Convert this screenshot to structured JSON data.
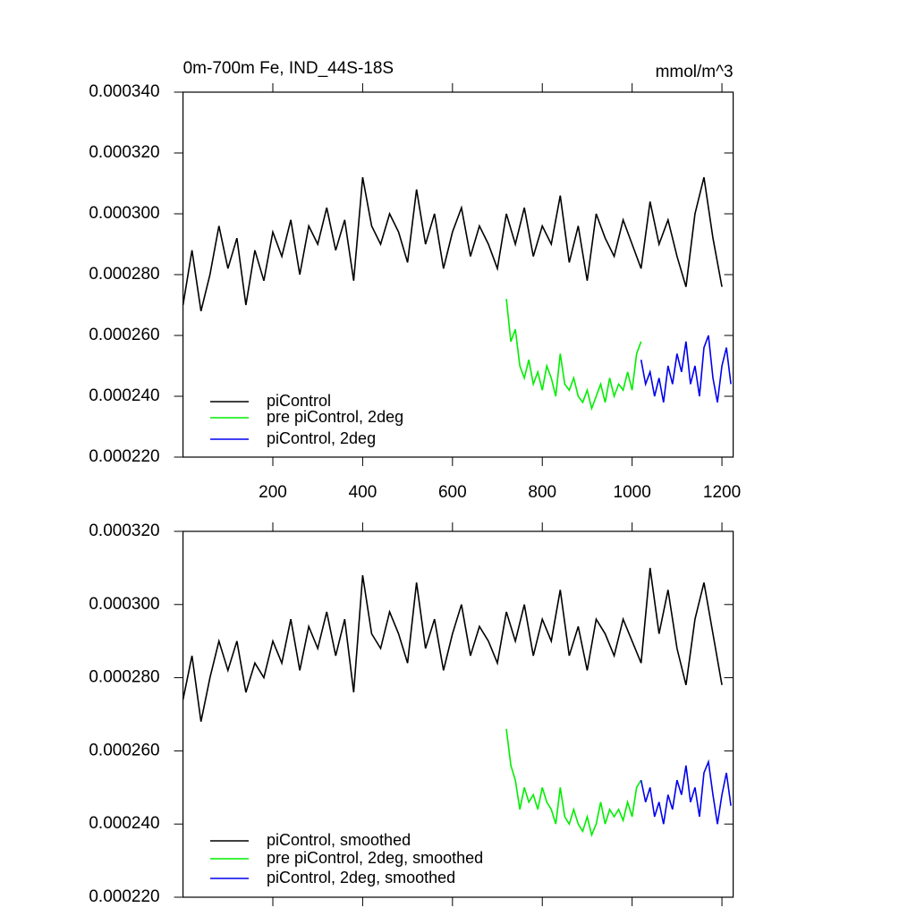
{
  "chart_data": [
    {
      "type": "line",
      "title": "0m-700m Fe, IND_44S-18S",
      "units": "mmol/m^3",
      "xlim": [
        0,
        1225
      ],
      "xticks": [
        200,
        400,
        600,
        800,
        1000,
        1200
      ],
      "ylim": [
        0.00022,
        0.00034
      ],
      "yticks": [
        {
          "value": 0.00022,
          "label": "0.000220"
        },
        {
          "value": 0.00024,
          "label": "0.000240"
        },
        {
          "value": 0.00026,
          "label": "0.000260"
        },
        {
          "value": 0.00028,
          "label": "0.000280"
        },
        {
          "value": 0.0003,
          "label": "0.000300"
        },
        {
          "value": 0.00032,
          "label": "0.000320"
        },
        {
          "value": 0.00034,
          "label": "0.000340"
        }
      ],
      "legend": "lower left",
      "series": [
        {
          "name": "piControl",
          "color": "#000000",
          "x": [
            0,
            20,
            40,
            60,
            80,
            100,
            120,
            140,
            160,
            180,
            200,
            220,
            240,
            260,
            280,
            300,
            320,
            340,
            360,
            380,
            400,
            420,
            440,
            460,
            480,
            500,
            520,
            540,
            560,
            580,
            600,
            620,
            640,
            660,
            680,
            700,
            720,
            740,
            760,
            780,
            800,
            820,
            840,
            860,
            880,
            900,
            920,
            940,
            960,
            980,
            1000,
            1020,
            1040,
            1060,
            1080,
            1100,
            1120,
            1140,
            1160,
            1180,
            1200
          ],
          "values": [
            0.00027,
            0.000288,
            0.000268,
            0.00028,
            0.000296,
            0.000282,
            0.000292,
            0.00027,
            0.000288,
            0.000278,
            0.000294,
            0.000286,
            0.000298,
            0.00028,
            0.000296,
            0.00029,
            0.000302,
            0.000288,
            0.000298,
            0.000278,
            0.000312,
            0.000296,
            0.00029,
            0.0003,
            0.000294,
            0.000284,
            0.000308,
            0.00029,
            0.0003,
            0.000282,
            0.000294,
            0.000302,
            0.000286,
            0.000296,
            0.00029,
            0.000282,
            0.0003,
            0.00029,
            0.000302,
            0.000286,
            0.000296,
            0.00029,
            0.000306,
            0.000284,
            0.000296,
            0.000278,
            0.0003,
            0.000292,
            0.000286,
            0.000298,
            0.00029,
            0.000282,
            0.000304,
            0.00029,
            0.000298,
            0.000286,
            0.000276,
            0.0003,
            0.000312,
            0.000292,
            0.000276
          ]
        },
        {
          "name": "pre piControl, 2deg",
          "color": "#00ee00",
          "x": [
            720,
            730,
            740,
            750,
            760,
            770,
            780,
            790,
            800,
            810,
            820,
            830,
            840,
            850,
            860,
            870,
            880,
            890,
            900,
            910,
            920,
            930,
            940,
            950,
            960,
            970,
            980,
            990,
            1000,
            1010,
            1020
          ],
          "values": [
            0.000272,
            0.000258,
            0.000262,
            0.00025,
            0.000246,
            0.000252,
            0.000244,
            0.000248,
            0.000242,
            0.00025,
            0.000246,
            0.00024,
            0.000254,
            0.000244,
            0.000242,
            0.000246,
            0.00024,
            0.000238,
            0.000242,
            0.000236,
            0.00024,
            0.000244,
            0.000238,
            0.000246,
            0.00024,
            0.000244,
            0.000242,
            0.000248,
            0.000242,
            0.000254,
            0.000258
          ]
        },
        {
          "name": "piControl, 2deg",
          "color": "#0000ee",
          "x": [
            1020,
            1030,
            1040,
            1050,
            1060,
            1070,
            1080,
            1090,
            1100,
            1110,
            1120,
            1130,
            1140,
            1150,
            1160,
            1170,
            1180,
            1190,
            1200,
            1210,
            1220
          ],
          "values": [
            0.000252,
            0.000244,
            0.000248,
            0.00024,
            0.000246,
            0.000238,
            0.00025,
            0.000244,
            0.000254,
            0.000248,
            0.000258,
            0.000244,
            0.00025,
            0.00024,
            0.000256,
            0.00026,
            0.000246,
            0.000238,
            0.00025,
            0.000256,
            0.000244
          ]
        }
      ]
    },
    {
      "type": "line",
      "xlim": [
        0,
        1225
      ],
      "xticks": [
        200,
        400,
        600,
        800,
        1000,
        1200
      ],
      "ylim": [
        0.00022,
        0.00032
      ],
      "yticks": [
        {
          "value": 0.00022,
          "label": "0.000220"
        },
        {
          "value": 0.00024,
          "label": "0.000240"
        },
        {
          "value": 0.00026,
          "label": "0.000260"
        },
        {
          "value": 0.00028,
          "label": "0.000280"
        },
        {
          "value": 0.0003,
          "label": "0.000300"
        },
        {
          "value": 0.00032,
          "label": "0.000320"
        }
      ],
      "legend": "lower left",
      "series": [
        {
          "name": "piControl, smoothed",
          "color": "#000000",
          "x": [
            0,
            20,
            40,
            60,
            80,
            100,
            120,
            140,
            160,
            180,
            200,
            220,
            240,
            260,
            280,
            300,
            320,
            340,
            360,
            380,
            400,
            420,
            440,
            460,
            480,
            500,
            520,
            540,
            560,
            580,
            600,
            620,
            640,
            660,
            680,
            700,
            720,
            740,
            760,
            780,
            800,
            820,
            840,
            860,
            880,
            900,
            920,
            940,
            960,
            980,
            1000,
            1020,
            1040,
            1060,
            1080,
            1100,
            1120,
            1140,
            1160,
            1180,
            1200
          ],
          "values": [
            0.000274,
            0.000286,
            0.000268,
            0.00028,
            0.00029,
            0.000282,
            0.00029,
            0.000276,
            0.000284,
            0.00028,
            0.00029,
            0.000284,
            0.000296,
            0.000282,
            0.000294,
            0.000288,
            0.000298,
            0.000286,
            0.000296,
            0.000276,
            0.000308,
            0.000292,
            0.000288,
            0.000298,
            0.000292,
            0.000284,
            0.000306,
            0.000288,
            0.000296,
            0.000282,
            0.000292,
            0.0003,
            0.000286,
            0.000294,
            0.00029,
            0.000284,
            0.000298,
            0.00029,
            0.0003,
            0.000286,
            0.000296,
            0.00029,
            0.000304,
            0.000286,
            0.000294,
            0.000282,
            0.000296,
            0.000292,
            0.000286,
            0.000296,
            0.00029,
            0.000284,
            0.00031,
            0.000292,
            0.000304,
            0.000288,
            0.000278,
            0.000296,
            0.000306,
            0.000292,
            0.000278
          ]
        },
        {
          "name": "pre piControl, 2deg, smoothed",
          "color": "#00ee00",
          "x": [
            720,
            730,
            740,
            750,
            760,
            770,
            780,
            790,
            800,
            810,
            820,
            830,
            840,
            850,
            860,
            870,
            880,
            890,
            900,
            910,
            920,
            930,
            940,
            950,
            960,
            970,
            980,
            990,
            1000,
            1010,
            1020
          ],
          "values": [
            0.000266,
            0.000256,
            0.000252,
            0.000244,
            0.00025,
            0.000246,
            0.000248,
            0.000244,
            0.00025,
            0.000246,
            0.000244,
            0.00024,
            0.00025,
            0.000242,
            0.00024,
            0.000244,
            0.00024,
            0.000238,
            0.000242,
            0.000237,
            0.00024,
            0.000246,
            0.00024,
            0.000244,
            0.000242,
            0.000244,
            0.000241,
            0.000246,
            0.000242,
            0.00025,
            0.000252
          ]
        },
        {
          "name": "piControl, 2deg, smoothed",
          "color": "#0000ee",
          "x": [
            1020,
            1030,
            1040,
            1050,
            1060,
            1070,
            1080,
            1090,
            1100,
            1110,
            1120,
            1130,
            1140,
            1150,
            1160,
            1170,
            1180,
            1190,
            1200,
            1210,
            1220
          ],
          "values": [
            0.000252,
            0.000246,
            0.00025,
            0.000242,
            0.000246,
            0.00024,
            0.000248,
            0.000244,
            0.000252,
            0.000248,
            0.000256,
            0.000246,
            0.00025,
            0.000242,
            0.000254,
            0.000257,
            0.000248,
            0.00024,
            0.000248,
            0.000254,
            0.000245
          ]
        }
      ]
    }
  ]
}
